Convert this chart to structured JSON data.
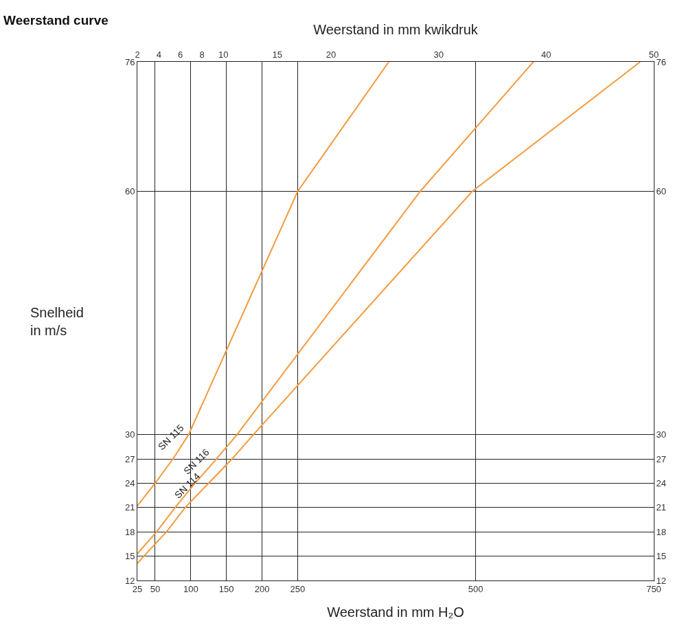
{
  "chart_data": {
    "type": "line",
    "title": "Weerstand curve",
    "xlabel": "Weerstand in mm H₂O",
    "x2label": "Weerstand in mm kwikdruk",
    "ylabel": "Snelheid\nin m/s",
    "grid": true,
    "legend": false,
    "marker": "none",
    "line_style": "solid",
    "xlim": [
      25,
      750
    ],
    "xticks": [
      25,
      50,
      100,
      150,
      200,
      250,
      500,
      750
    ],
    "x2lim": [
      2,
      50
    ],
    "x2ticks": [
      2,
      4,
      6,
      8,
      10,
      15,
      20,
      30,
      40,
      50
    ],
    "ylim": [
      12,
      76
    ],
    "yticks": [
      12,
      15,
      18,
      21,
      24,
      27,
      30,
      60,
      76
    ],
    "y2lim": [
      12,
      76
    ],
    "y2ticks": [
      12,
      15,
      18,
      21,
      24,
      27,
      30,
      60,
      76
    ],
    "series": [
      {
        "name": "SN 115",
        "color": "#f39a3e",
        "x": [
          25,
          50,
          75,
          97,
          250,
          378
        ],
        "values": [
          21.2,
          24,
          27,
          30,
          60,
          76
        ]
      },
      {
        "name": "SN 116",
        "color": "#f39a3e",
        "x": [
          25,
          52,
          78,
          106,
          136,
          165,
          422,
          581
        ],
        "values": [
          15.3,
          18,
          21,
          24,
          27,
          30,
          60,
          76
        ]
      },
      {
        "name": "SN 114",
        "color": "#f39a3e",
        "x": [
          25,
          34,
          66,
          92,
          125,
          158,
          188,
          495,
          731
        ],
        "values": [
          14.1,
          15,
          18,
          21,
          24,
          27,
          30,
          60,
          76
        ]
      }
    ]
  }
}
